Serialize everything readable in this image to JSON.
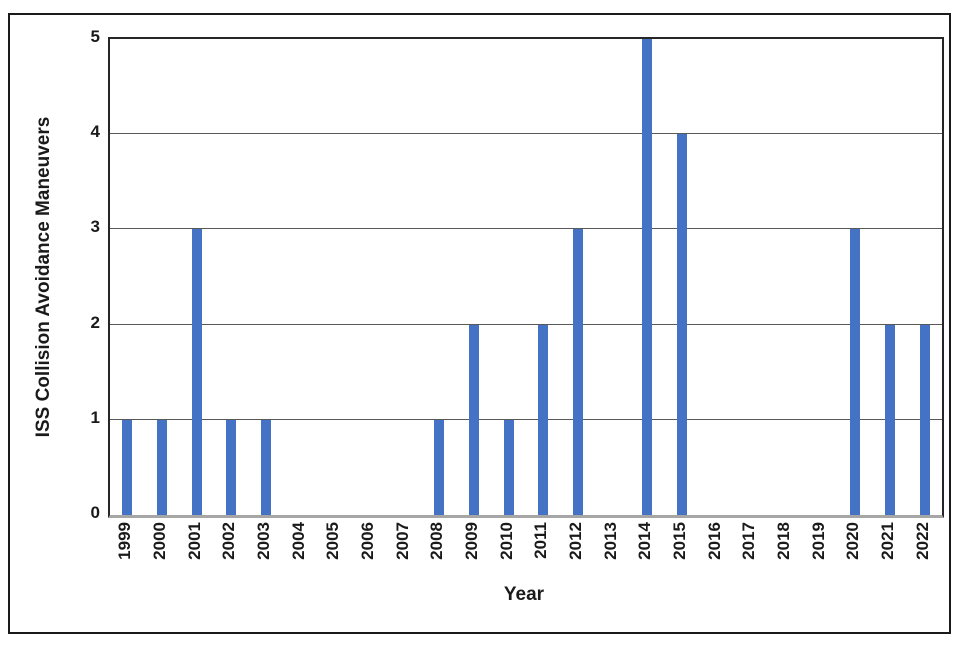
{
  "figure": {
    "background": "#ffffff",
    "frame_color": "#1a1a1a"
  },
  "chart_data": {
    "type": "bar",
    "title": "",
    "xlabel": "Year",
    "ylabel": "ISS Collision Avoidance Maneuvers",
    "categories": [
      "1999",
      "2000",
      "2001",
      "2002",
      "2003",
      "2004",
      "2005",
      "2006",
      "2007",
      "2008",
      "2009",
      "2010",
      "2011",
      "2012",
      "2013",
      "2014",
      "2015",
      "2016",
      "2017",
      "2018",
      "2019",
      "2020",
      "2021",
      "2022"
    ],
    "values": [
      1,
      1,
      3,
      1,
      1,
      0,
      0,
      0,
      0,
      1,
      2,
      1,
      2,
      3,
      0,
      5,
      4,
      0,
      0,
      0,
      0,
      3,
      2,
      2
    ],
    "ylim": [
      0,
      5
    ],
    "yticks": [
      0,
      1,
      2,
      3,
      4,
      5
    ],
    "grid": true,
    "legend_position": "none",
    "bar_color": "#4472C4",
    "gridline_color": "#595959",
    "plot_border_color": "#262626",
    "axis_line_color": "#a6a6a6",
    "label_color": "#1a1a1a"
  }
}
